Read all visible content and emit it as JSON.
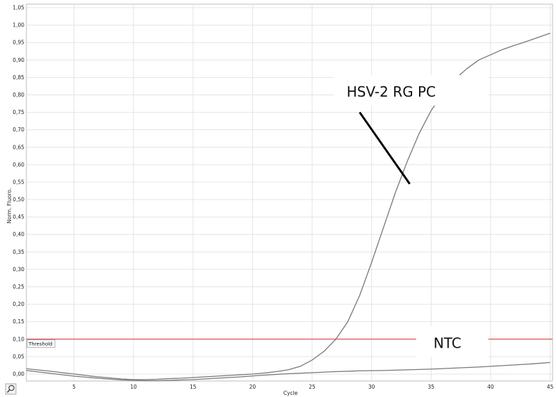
{
  "chart_data": {
    "type": "line",
    "xlabel": "Cycle",
    "ylabel": "Norm. Fluoro.",
    "xlim": [
      1,
      45.2
    ],
    "ylim": [
      -0.02,
      1.06
    ],
    "xticks": [
      5,
      10,
      15,
      20,
      25,
      30,
      35,
      40,
      45
    ],
    "yticks": [
      "0,00",
      "0,05",
      "0,10",
      "0,15",
      "0,20",
      "0,25",
      "0,30",
      "0,35",
      "0,40",
      "0,45",
      "0,50",
      "0,55",
      "0,60",
      "0,65",
      "0,70",
      "0,75",
      "0,80",
      "0,85",
      "0,90",
      "0,95",
      "1,00",
      "1,05"
    ],
    "grid": true,
    "threshold": {
      "label": "Threshold",
      "value": 0.1,
      "color": "#e05050"
    },
    "series": [
      {
        "name": "HSV-2 RG PC",
        "color": "#777777",
        "x": [
          1,
          3,
          5,
          7,
          9,
          10,
          11,
          12,
          13,
          14,
          15,
          16,
          17,
          18,
          19,
          20,
          21,
          22,
          23,
          24,
          25,
          26,
          27,
          28,
          29,
          30,
          31,
          32,
          33,
          34,
          35,
          36,
          37,
          38,
          39,
          40,
          41,
          42,
          43,
          44,
          45
        ],
        "y": [
          0.015,
          0.008,
          0.0,
          -0.008,
          -0.014,
          -0.016,
          -0.016,
          -0.015,
          -0.013,
          -0.012,
          -0.01,
          -0.008,
          -0.006,
          -0.004,
          -0.002,
          0.0,
          0.003,
          0.007,
          0.012,
          0.022,
          0.04,
          0.065,
          0.1,
          0.15,
          0.225,
          0.32,
          0.42,
          0.52,
          0.61,
          0.69,
          0.755,
          0.805,
          0.845,
          0.875,
          0.9,
          0.915,
          0.93,
          0.942,
          0.953,
          0.965,
          0.977
        ]
      },
      {
        "name": "NTC",
        "color": "#777777",
        "x": [
          1,
          3,
          5,
          7,
          9,
          10,
          11,
          12,
          13,
          14,
          15,
          17,
          19,
          21,
          23,
          25,
          27,
          29,
          31,
          33,
          35,
          37,
          39,
          41,
          43,
          45
        ],
        "y": [
          0.01,
          0.002,
          -0.006,
          -0.012,
          -0.017,
          -0.018,
          -0.019,
          -0.019,
          -0.018,
          -0.017,
          -0.016,
          -0.012,
          -0.008,
          -0.003,
          0.001,
          0.004,
          0.007,
          0.009,
          0.01,
          0.012,
          0.014,
          0.017,
          0.02,
          0.024,
          0.028,
          0.033
        ]
      }
    ],
    "annotations": [
      {
        "text": "HSV-2 RG PC",
        "x": 27.9,
        "y": 0.795,
        "arrow_from": [
          29.0,
          0.75
        ],
        "arrow_to": [
          33.2,
          0.545
        ]
      },
      {
        "text": "NTC",
        "x": 35.2,
        "y": 0.075
      }
    ],
    "icon": "magnifier-icon"
  }
}
